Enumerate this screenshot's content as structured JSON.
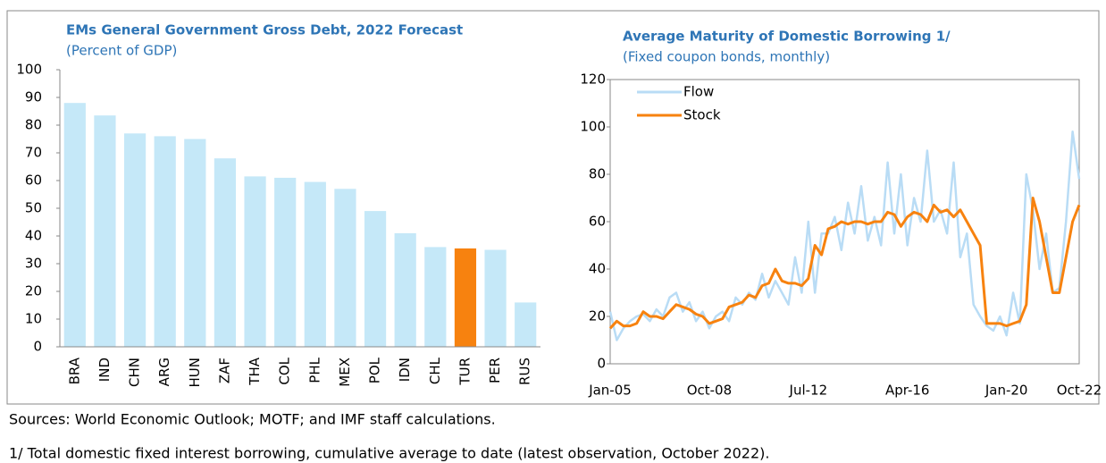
{
  "chart_data": [
    {
      "type": "bar",
      "title": "EMs General Government Gross Debt, 2022 Forecast",
      "subtitle": "(Percent of GDP)",
      "categories": [
        "BRA",
        "IND",
        "CHN",
        "ARG",
        "HUN",
        "ZAF",
        "THA",
        "COL",
        "PHL",
        "MEX",
        "POL",
        "IDN",
        "CHL",
        "TUR",
        "PER",
        "RUS"
      ],
      "values": [
        88,
        83.5,
        77,
        76,
        75,
        68,
        61.5,
        61,
        59.5,
        57,
        49,
        41,
        36,
        35.5,
        35,
        16
      ],
      "colors": [
        "#c5e8f8",
        "#c5e8f8",
        "#c5e8f8",
        "#c5e8f8",
        "#c5e8f8",
        "#c5e8f8",
        "#c5e8f8",
        "#c5e8f8",
        "#c5e8f8",
        "#c5e8f8",
        "#c5e8f8",
        "#c5e8f8",
        "#c5e8f8",
        "#f7820f",
        "#c5e8f8",
        "#c5e8f8"
      ],
      "ylim": [
        0,
        100
      ],
      "yticks": [
        0,
        10,
        20,
        30,
        40,
        50,
        60,
        70,
        80,
        90,
        100
      ],
      "grid": false
    },
    {
      "type": "line",
      "title": "Average Maturity of Domestic Borrowing 1/",
      "subtitle": "(Fixed coupon bonds, monthly)",
      "categories": [
        "Jan-05",
        null,
        null,
        null,
        null,
        null,
        null,
        null,
        null,
        null,
        null,
        null,
        null,
        null,
        null,
        "Oct-08",
        null,
        null,
        null,
        null,
        null,
        null,
        null,
        null,
        null,
        null,
        null,
        null,
        null,
        null,
        "Jul-12",
        null,
        null,
        null,
        null,
        null,
        null,
        null,
        null,
        null,
        null,
        null,
        null,
        null,
        null,
        "Apr-16",
        null,
        null,
        null,
        null,
        null,
        null,
        null,
        null,
        null,
        null,
        null,
        null,
        null,
        null,
        "Jan-20",
        null,
        null,
        null,
        null,
        null,
        null,
        null,
        null,
        null,
        null,
        "Oct-22"
      ],
      "series": [
        {
          "name": "Flow",
          "color": "#b9dcf5",
          "values": [
            22,
            10,
            15,
            18,
            20,
            21,
            18,
            23,
            20,
            28,
            30,
            22,
            26,
            18,
            22,
            15,
            20,
            22,
            18,
            28,
            25,
            30,
            27,
            38,
            28,
            35,
            30,
            25,
            45,
            30,
            60,
            30,
            55,
            55,
            62,
            48,
            68,
            55,
            75,
            52,
            62,
            50,
            85,
            55,
            80,
            50,
            70,
            60,
            90,
            60,
            65,
            55,
            85,
            45,
            55,
            25,
            20,
            16,
            14,
            20,
            12,
            30,
            17,
            80,
            65,
            40,
            55,
            30,
            32,
            60,
            98,
            78
          ]
        },
        {
          "name": "Stock",
          "color": "#f7820f",
          "values": [
            15,
            18,
            16,
            16,
            17,
            22,
            20,
            20,
            19,
            22,
            25,
            24,
            23,
            21,
            20,
            17,
            18,
            19,
            24,
            25,
            26,
            29,
            28,
            33,
            34,
            40,
            35,
            34,
            34,
            33,
            36,
            50,
            46,
            57,
            58,
            60,
            59,
            60,
            60,
            59,
            60,
            60,
            64,
            63,
            58,
            62,
            64,
            63,
            60,
            67,
            64,
            65,
            62,
            65,
            60,
            55,
            50,
            17,
            17,
            17,
            16,
            17,
            18,
            25,
            70,
            60,
            45,
            30,
            30,
            45,
            60,
            67
          ]
        }
      ],
      "ylim": [
        0,
        120
      ],
      "yticks": [
        0,
        20,
        40,
        60,
        80,
        100,
        120
      ],
      "legend": "upper-left"
    }
  ],
  "footnotes": [
    "Sources: World Economic Outlook; MOTF; and IMF staff calculations.",
    "1/ Total domestic fixed interest borrowing, cumulative average to date (latest observation, October 2022)."
  ]
}
